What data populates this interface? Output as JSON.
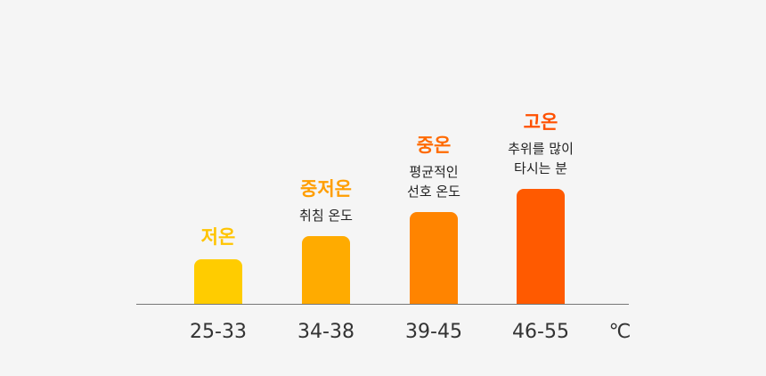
{
  "chart_data": {
    "type": "bar",
    "unit": "℃",
    "categories": [
      "25-33",
      "34-38",
      "39-45",
      "46-55"
    ],
    "values": [
      1,
      2,
      3,
      4
    ],
    "ylim": [
      0,
      4
    ],
    "grid": false,
    "labels": [
      {
        "title": "저온",
        "desc": []
      },
      {
        "title": "중저온",
        "desc": [
          "취침 온도"
        ]
      },
      {
        "title": "중온",
        "desc": [
          "평균적인",
          "선호 온도"
        ]
      },
      {
        "title": "고온",
        "desc": [
          "추위를 많이",
          "타시는 분"
        ]
      }
    ],
    "colors": [
      "#ffcc00",
      "#ffab00",
      "#ff8400",
      "#ff5a00"
    ],
    "title_colors": [
      "#ffc400",
      "#ff9e00",
      "#ff6a00",
      "#ff5000"
    ]
  }
}
